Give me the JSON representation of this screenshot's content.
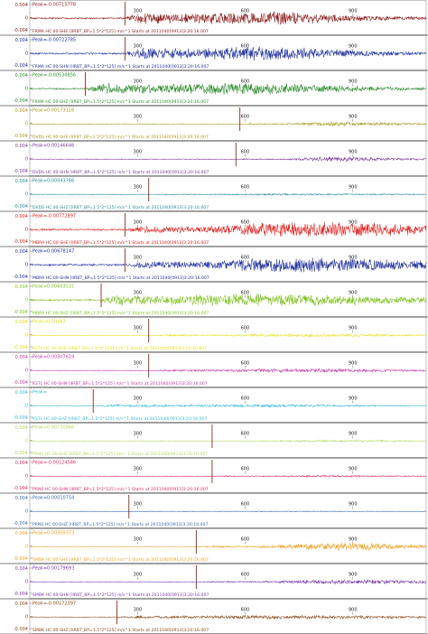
{
  "chart_data": {
    "type": "line",
    "title": "",
    "xlabel": "",
    "ylabel": "",
    "x_ticks": [
      "300",
      "600",
      "900"
    ],
    "y_ticks": [
      "0.004",
      "0",
      "-0.004"
    ],
    "traces": [
      {
        "peak": "Peak=-0.00715778",
        "label": "FRMA HC 00-SHE  [IIRBT_BP=1.5*2*125] m/s^1 Starts at 2011040[0913]3:20:16.007",
        "color": "#8b1a1a",
        "pick": 0.24,
        "env": [
          0.05,
          0.32,
          0.42,
          0.2,
          0.08
        ]
      },
      {
        "peak": "Peak=-0.00722785",
        "label": "FRMA HC 00-SHN  [IIRBT_BP=1.5*2*125] m/s^1 Starts at 2011040[0913]3:20:16.007",
        "color": "#1f2f9e",
        "pick": 0.24,
        "env": [
          0.05,
          0.35,
          0.45,
          0.22,
          0.08
        ]
      },
      {
        "peak": "Peak=-0.00530856",
        "label": "FRMA HC 00-SHZ  [IIRBT_BP=1.5*2*125] m/s^1 Starts at 2011040[0913]3:20:16.007",
        "color": "#2e8b2e",
        "pick": 0.14,
        "env": [
          0.05,
          0.3,
          0.38,
          0.2,
          0.08
        ]
      },
      {
        "peak": "Peak=0.00173116",
        "label": "DVDS HC 00-SHE  [IIRBT_BP=1.5*2*125] m/s^1 Starts at 2011040[0913]3:20:16.007",
        "color": "#a89a20",
        "pick": 0.53,
        "env": [
          0.02,
          0.04,
          0.14,
          0.1,
          0.05
        ]
      },
      {
        "peak": "Peak=0.00146646",
        "label": "DVDS HC 00-SHN  [IIRBT_BP=1.5*2*125] m/s^1 Starts at 2011040[0913]3:20:16.007",
        "color": "#7a3a9a",
        "pick": 0.52,
        "env": [
          0.02,
          0.04,
          0.16,
          0.1,
          0.05
        ]
      },
      {
        "peak": "Peak=0.00043766",
        "label": "DVDS HC 00-SHZ  [IIRBT_BP=1.5*2*125] m/s^1 Starts at 2011040[0913]3:20:16.007",
        "color": "#2a8a9a",
        "pick": 0.3,
        "env": [
          0.02,
          0.03,
          0.06,
          0.05,
          0.03
        ]
      },
      {
        "peak": "Peak=-0.00772897",
        "label": "MBRA HC 00-SHE  [IIRBT_BP=1.5*2*125] m/s^1 Starts at 2011040[0913]3:20:16.007",
        "color": "#e02020",
        "pick": 0.24,
        "env": [
          0.06,
          0.2,
          0.45,
          0.48,
          0.3
        ]
      },
      {
        "peak": "Peak=0.00678147",
        "label": "MBRA HC 00-SHN  [IIRBT_BP=1.5*2*125] m/s^1 Starts at 2011040[0913]3:20:16.007",
        "color": "#1f2f9e",
        "pick": 0.24,
        "env": [
          0.06,
          0.22,
          0.48,
          0.42,
          0.28
        ]
      },
      {
        "peak": "Peak=0.00603531",
        "label": "MBRA HC 00-SHZ  [IIRBT_BP=1.5*2*125] m/s^1 Starts at 2011040[0913]3:20:16.007",
        "color": "#7fc21f",
        "pick": 0.18,
        "env": [
          0.05,
          0.32,
          0.4,
          0.3,
          0.18
        ]
      },
      {
        "peak": "Peak=0.00463",
        "label": "KSTL HC 00-SHE  [IIRBT_BP=1.5*2*125] m/s^1 Starts at 2011040[0913]3:20:16.007",
        "color": "#e8e01a",
        "pick": 0.3,
        "env": [
          0.02,
          0.05,
          0.1,
          0.08,
          0.04
        ]
      },
      {
        "peak": "Peak=0.00307619",
        "label": "KSTL HC 00-SHN  [IIRBT_BP=1.5*2*125] m/s^1 Starts at 2011040[0913]3:20:16.007",
        "color": "#c03aa8",
        "pick": 0.3,
        "env": [
          0.02,
          0.06,
          0.14,
          0.1,
          0.05
        ]
      },
      {
        "peak": "Peak=",
        "label": "KSTL HC 00-SHZ  [IIRBT_BP=1.5*2*125] m/s^1 Starts at 2011040[0913]3:20:16.007",
        "color": "#3ab8d8",
        "pick": 0.16,
        "env": [
          0.02,
          0.08,
          0.1,
          0.06,
          0.03
        ]
      },
      {
        "peak": "Peak=0.00130866",
        "label": "PRNS HC 00-SHE  [IIRBT_BP=1.5*2*125] m/s^1 Starts at 2011040[0913]3:20:16.007",
        "color": "#b8d860",
        "pick": 0.46,
        "env": [
          0.02,
          0.03,
          0.06,
          0.05,
          0.03
        ]
      },
      {
        "peak": "Peak=-0.00124546",
        "label": "PRNS HC 00-SHN  [IIRBT_BP=1.5*2*125] m/s^1 Starts at 2011040[0913]3:20:16.007",
        "color": "#e02a6a",
        "pick": 0.46,
        "env": [
          0.02,
          0.03,
          0.06,
          0.05,
          0.03
        ]
      },
      {
        "peak": "Peak=0.00010754",
        "label": "PRNS HC 00-SHZ  [IIRBT_BP=1.5*2*125] m/s^1 Starts at 2011040[0913]3:20:16.007",
        "color": "#3a6ab8",
        "pick": 0.25,
        "env": [
          0.01,
          0.02,
          0.03,
          0.02,
          0.01
        ]
      },
      {
        "peak": "Peak=0.00309373",
        "label": "SMBK HC 00-SHE  [IIRBT_BP=1.5*2*125] m/s^1 Starts at 2011040[0913]3:20:16.007",
        "color": "#f0a020",
        "pick": 0.42,
        "env": [
          0.02,
          0.06,
          0.2,
          0.25,
          0.1
        ]
      },
      {
        "peak": "Peak=0.00179693",
        "label": "SMBK HC 00-SHN  [IIRBT_BP=1.5*2*125] m/s^1 Starts at 2011040[0913]3:20:16.007",
        "color": "#7a3aa8",
        "pick": 0.42,
        "env": [
          0.02,
          0.05,
          0.12,
          0.14,
          0.08
        ]
      },
      {
        "peak": "Peak=-0.00172397",
        "label": "SMBK HC 00-SHZ  [IIRBT_BP=1.5*2*125] m/s^1 Starts at 2011040[0913]3:20:16.007",
        "color": "#8b4a1a",
        "pick": 0.22,
        "env": [
          0.02,
          0.08,
          0.12,
          0.1,
          0.06
        ]
      }
    ]
  }
}
